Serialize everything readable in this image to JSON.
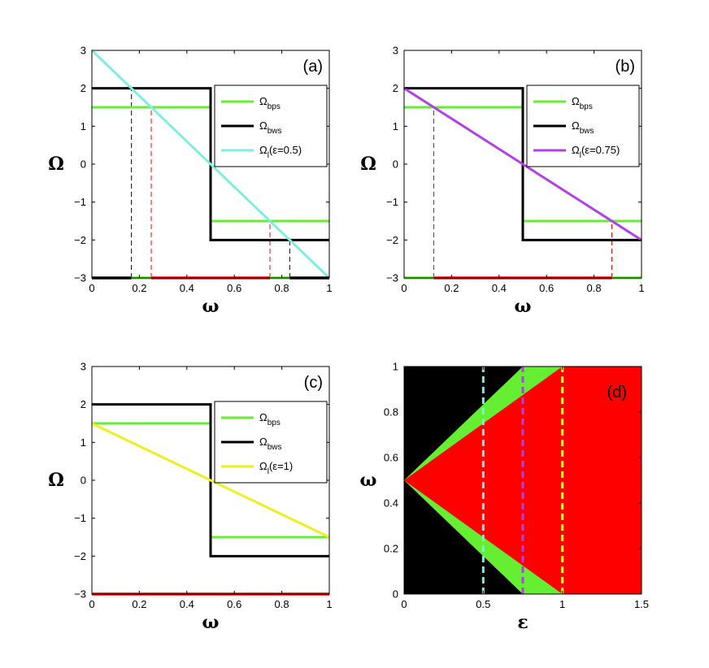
{
  "colors": {
    "bps": "#66ee33",
    "bws": "#000000",
    "cyan": "#7feee0",
    "purple": "#b340e6",
    "yellow": "#eeee22",
    "red": "#ff0000",
    "black_region": "#000000",
    "green_region": "#66ee33",
    "red_region": "#ff0000",
    "dash_black": "#000000",
    "dash_red": "#ff0000"
  },
  "chart_data": [
    {
      "panel": "(a)",
      "type": "line",
      "xlabel": "ω",
      "ylabel": "Ω",
      "xlim": [
        0,
        1
      ],
      "ylim": [
        -3,
        3
      ],
      "xticks": [
        "0",
        "0.2",
        "0.4",
        "0.6",
        "0.8",
        "1"
      ],
      "yticks": [
        "3",
        "2",
        "1",
        "0",
        "−1",
        "−2",
        "−3"
      ],
      "legend": {
        "placement": "top-right",
        "entries": [
          {
            "main": "Ω",
            "sub": "bps",
            "tail": "",
            "color_key": "bps"
          },
          {
            "main": "Ω",
            "sub": "bws",
            "tail": "",
            "color_key": "bws"
          },
          {
            "main": "Ω",
            "sub": "l",
            "tail": "(ε=0.5)",
            "color_key": "cyan"
          }
        ]
      },
      "series": [
        {
          "name": "Ω_bps",
          "color_key": "bps",
          "segments": [
            [
              [
                0,
                1.5
              ],
              [
                0.5,
                1.5
              ]
            ],
            [
              [
                0.5,
                -1.5
              ],
              [
                1,
                -1.5
              ]
            ]
          ]
        },
        {
          "name": "Ω_bws",
          "color_key": "bws",
          "segments": [
            [
              [
                0,
                2
              ],
              [
                0.5,
                2
              ],
              [
                0.5,
                -2
              ],
              [
                1,
                -2
              ]
            ]
          ]
        },
        {
          "name": "Ω_l(ε=0.5)",
          "color_key": "cyan",
          "segments": [
            [
              [
                0,
                3
              ],
              [
                1,
                -3
              ]
            ]
          ]
        }
      ],
      "dashed_lines": [
        {
          "x": 0.1667,
          "y_top": 2,
          "color_key": "dash_black"
        },
        {
          "x": 0.25,
          "y_top": 1.5,
          "color_key": "dash_red"
        },
        {
          "x": 0.75,
          "y_top": -1.5,
          "color_key": "dash_red"
        },
        {
          "x": 0.8333,
          "y_top": -2,
          "color_key": "dash_black"
        }
      ],
      "bottom_bands": [
        {
          "from": 0,
          "to": 0.1667,
          "color_key": "bws"
        },
        {
          "from": 0.1667,
          "to": 0.25,
          "color_key": "bps"
        },
        {
          "from": 0.25,
          "to": 0.75,
          "color_key": "red"
        },
        {
          "from": 0.75,
          "to": 0.8333,
          "color_key": "bps"
        },
        {
          "from": 0.8333,
          "to": 1,
          "color_key": "bws"
        }
      ]
    },
    {
      "panel": "(b)",
      "type": "line",
      "xlabel": "ω",
      "ylabel": "Ω",
      "xlim": [
        0,
        1
      ],
      "ylim": [
        -3,
        3
      ],
      "xticks": [
        "0",
        "0.2",
        "0.4",
        "0.6",
        "0.8",
        "1"
      ],
      "yticks": [
        "3",
        "2",
        "1",
        "0",
        "−1",
        "−2",
        "−3"
      ],
      "legend": {
        "placement": "top-right",
        "entries": [
          {
            "main": "Ω",
            "sub": "bps",
            "tail": "",
            "color_key": "bps"
          },
          {
            "main": "Ω",
            "sub": "bws",
            "tail": "",
            "color_key": "bws"
          },
          {
            "main": "Ω",
            "sub": "l",
            "tail": "(ε=0.75)",
            "color_key": "purple"
          }
        ]
      },
      "series": [
        {
          "name": "Ω_bps",
          "color_key": "bps",
          "segments": [
            [
              [
                0,
                1.5
              ],
              [
                0.5,
                1.5
              ]
            ],
            [
              [
                0.5,
                -1.5
              ],
              [
                1,
                -1.5
              ]
            ]
          ]
        },
        {
          "name": "Ω_bws",
          "color_key": "bws",
          "segments": [
            [
              [
                0,
                2
              ],
              [
                0.5,
                2
              ],
              [
                0.5,
                -2
              ],
              [
                1,
                -2
              ]
            ]
          ]
        },
        {
          "name": "Ω_l(ε=0.75)",
          "color_key": "purple",
          "segments": [
            [
              [
                0,
                2
              ],
              [
                1,
                -2
              ]
            ]
          ]
        }
      ],
      "dashed_lines": [
        {
          "x": 0.125,
          "y_top": 1.5,
          "color_key": "dash_red"
        },
        {
          "x": 0.875,
          "y_top": -1.5,
          "color_key": "dash_red"
        }
      ],
      "bottom_bands": [
        {
          "from": 0,
          "to": 0.125,
          "color_key": "bps"
        },
        {
          "from": 0.125,
          "to": 0.875,
          "color_key": "red"
        },
        {
          "from": 0.875,
          "to": 1,
          "color_key": "bps"
        }
      ]
    },
    {
      "panel": "(c)",
      "type": "line",
      "xlabel": "ω",
      "ylabel": "Ω",
      "xlim": [
        0,
        1
      ],
      "ylim": [
        -3,
        3
      ],
      "xticks": [
        "0",
        "0.2",
        "0.4",
        "0.6",
        "0.8",
        "1"
      ],
      "yticks": [
        "3",
        "2",
        "1",
        "0",
        "−1",
        "−2",
        "−3"
      ],
      "legend": {
        "placement": "top-right",
        "entries": [
          {
            "main": "Ω",
            "sub": "bps",
            "tail": "",
            "color_key": "bps"
          },
          {
            "main": "Ω",
            "sub": "bws",
            "tail": "",
            "color_key": "bws"
          },
          {
            "main": "Ω",
            "sub": "l",
            "tail": "(ε=1)",
            "color_key": "yellow"
          }
        ]
      },
      "series": [
        {
          "name": "Ω_bps",
          "color_key": "bps",
          "segments": [
            [
              [
                0,
                1.5
              ],
              [
                0.5,
                1.5
              ]
            ],
            [
              [
                0.5,
                -1.5
              ],
              [
                1,
                -1.5
              ]
            ]
          ]
        },
        {
          "name": "Ω_bws",
          "color_key": "bws",
          "segments": [
            [
              [
                0,
                2
              ],
              [
                0.5,
                2
              ],
              [
                0.5,
                -2
              ],
              [
                1,
                -2
              ]
            ]
          ]
        },
        {
          "name": "Ω_l(ε=1)",
          "color_key": "yellow",
          "segments": [
            [
              [
                0,
                1.5
              ],
              [
                1,
                -1.5
              ]
            ]
          ]
        }
      ],
      "dashed_lines": [
        {
          "x": 0.0,
          "y_top": 1.5,
          "color_key": "dash_red"
        },
        {
          "x": 1.0,
          "y_top": -1.5,
          "color_key": "dash_red"
        }
      ],
      "bottom_bands": [
        {
          "from": 0,
          "to": 1,
          "color_key": "red"
        }
      ]
    },
    {
      "panel": "(d)",
      "type": "area",
      "xlabel": "ε",
      "ylabel": "ω",
      "xlim": [
        0,
        1.5
      ],
      "ylim": [
        0,
        1
      ],
      "xticks": [
        "0",
        "0.5",
        "1",
        "1.5"
      ],
      "yticks": [
        "1",
        "0.8",
        "0.6",
        "0.4",
        "0.2",
        "0"
      ],
      "regions": [
        {
          "name": "black",
          "color_key": "black_region",
          "points": [
            [
              0,
              0
            ],
            [
              1.5,
              0
            ],
            [
              1.5,
              1
            ],
            [
              0,
              1
            ]
          ]
        },
        {
          "name": "green",
          "color_key": "green_region",
          "points": [
            [
              0,
              0.5
            ],
            [
              0.75,
              1
            ],
            [
              1,
              1
            ],
            [
              1,
              0
            ],
            [
              0.75,
              0
            ]
          ]
        },
        {
          "name": "red",
          "color_key": "red_region",
          "points": [
            [
              0,
              0.5
            ],
            [
              0.75,
              0.875
            ],
            [
              1,
              1
            ],
            [
              1.5,
              1
            ],
            [
              1.5,
              0
            ],
            [
              1,
              0
            ],
            [
              0.75,
              0.125
            ]
          ]
        }
      ],
      "vlines": [
        {
          "x": 0.5,
          "color_key": "cyan"
        },
        {
          "x": 0.75,
          "color_key": "purple"
        },
        {
          "x": 1.0,
          "color_key": "yellow"
        }
      ]
    }
  ]
}
